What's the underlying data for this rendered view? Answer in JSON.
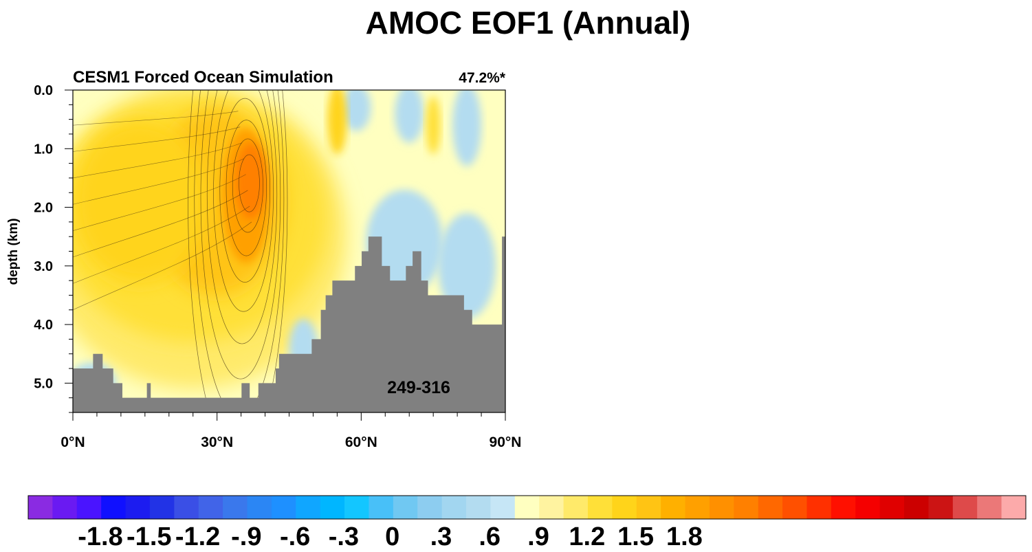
{
  "figure": {
    "title": "AMOC EOF1 (Annual)"
  },
  "chart_data": {
    "type": "heatmap",
    "title": "AMOC EOF1 (Annual)",
    "subtitle_left": "CESM1 Forced Ocean Simulation",
    "subtitle_right": "47.2%*",
    "annotation": "249-316",
    "xlabel": "",
    "ylabel": "depth (km)",
    "xlim": [
      0,
      90
    ],
    "ylim": [
      5.5,
      0.0
    ],
    "x_ticks": [
      0,
      30,
      60,
      90
    ],
    "x_tick_labels": [
      "0°N",
      "30°N",
      "60°N",
      "90°N"
    ],
    "y_ticks": [
      0.0,
      1.0,
      2.0,
      3.0,
      4.0,
      5.0
    ],
    "y_tick_labels": [
      "0.0",
      "1.0",
      "2.0",
      "3.0",
      "4.0",
      "5.0"
    ],
    "y_reversed": true,
    "bathymetry_color": "#808080",
    "bathymetry": [
      [
        0,
        4.75
      ],
      [
        4.2,
        4.75
      ],
      [
        4.2,
        4.5
      ],
      [
        6.2,
        4.5
      ],
      [
        6.2,
        4.75
      ],
      [
        8.4,
        4.75
      ],
      [
        8.4,
        5.0
      ],
      [
        10.3,
        5.0
      ],
      [
        10.3,
        5.25
      ],
      [
        15.4,
        5.25
      ],
      [
        15.4,
        5.0
      ],
      [
        16.2,
        5.0
      ],
      [
        16.2,
        5.25
      ],
      [
        35.1,
        5.25
      ],
      [
        35.1,
        5.0
      ],
      [
        36.8,
        5.0
      ],
      [
        36.8,
        5.25
      ],
      [
        38.6,
        5.25
      ],
      [
        38.6,
        5.0
      ],
      [
        42.2,
        5.0
      ],
      [
        42.2,
        4.75
      ],
      [
        42.9,
        4.75
      ],
      [
        42.9,
        4.5
      ],
      [
        49.7,
        4.5
      ],
      [
        49.7,
        4.25
      ],
      [
        51.6,
        4.25
      ],
      [
        51.6,
        3.75
      ],
      [
        52.6,
        3.75
      ],
      [
        52.6,
        3.5
      ],
      [
        54.0,
        3.5
      ],
      [
        54.0,
        3.25
      ],
      [
        58.7,
        3.25
      ],
      [
        58.7,
        3.0
      ],
      [
        60.1,
        3.0
      ],
      [
        60.1,
        2.75
      ],
      [
        61.5,
        2.75
      ],
      [
        61.5,
        2.5
      ],
      [
        64.3,
        2.5
      ],
      [
        64.3,
        3.0
      ],
      [
        66.0,
        3.0
      ],
      [
        66.0,
        3.25
      ],
      [
        69.3,
        3.25
      ],
      [
        69.3,
        3.0
      ],
      [
        70.7,
        3.0
      ],
      [
        70.7,
        2.75
      ],
      [
        72.5,
        2.75
      ],
      [
        72.5,
        3.25
      ],
      [
        73.9,
        3.25
      ],
      [
        73.9,
        3.5
      ],
      [
        81.4,
        3.5
      ],
      [
        81.4,
        3.75
      ],
      [
        83.1,
        3.75
      ],
      [
        83.1,
        4.0
      ],
      [
        89.3,
        4.0
      ],
      [
        89.3,
        2.5
      ],
      [
        90,
        2.5
      ]
    ],
    "colorbar": {
      "colors": [
        "#8A2BE2",
        "#6A1AF2",
        "#4A14FF",
        "#1010FF",
        "#1C1CF0",
        "#2233E6",
        "#3A4FE6",
        "#4164E8",
        "#3A78EC",
        "#2B86F4",
        "#1E90FF",
        "#10A6FF",
        "#00B6FF",
        "#13C6FF",
        "#48C0F8",
        "#70C8F2",
        "#8DCDF0",
        "#A2D6F0",
        "#B3DCF0",
        "#C6E6F6",
        "#FFFFC0",
        "#FFF3A0",
        "#FFEA6A",
        "#FFE038",
        "#FFD41A",
        "#FFC414",
        "#FFB000",
        "#FFA000",
        "#FF9000",
        "#FF8000",
        "#FF6800",
        "#FF5000",
        "#FF3000",
        "#FF1000",
        "#F50000",
        "#E00000",
        "#CC0000",
        "#CC1414",
        "#DE4A4A",
        "#EB7878",
        "#FCAAAA"
      ],
      "tick_labels": [
        "-1.8",
        "-1.5",
        "-1.2",
        "-.9",
        "-.6",
        "-.3",
        "0",
        ".3",
        ".6",
        ".9",
        "1.2",
        "1.5",
        "1.8"
      ]
    },
    "field_blobs": [
      {
        "cx": 37,
        "cy": 1.55,
        "rx": 3.2,
        "ry": 0.65,
        "value": 1.45
      },
      {
        "cx": 36,
        "cy": 1.8,
        "rx": 5.0,
        "ry": 1.15,
        "value": 1.05
      },
      {
        "cx": 30,
        "cy": 1.9,
        "rx": 14,
        "ry": 1.6,
        "value": 0.8
      },
      {
        "cx": 14,
        "cy": 1.9,
        "rx": 14,
        "ry": 1.4,
        "value": 0.72
      },
      {
        "cx": 25,
        "cy": 2.2,
        "rx": 28,
        "ry": 2.1,
        "value": 0.5
      },
      {
        "cx": 25,
        "cy": 2.5,
        "rx": 32,
        "ry": 2.6,
        "value": 0.3
      },
      {
        "cx": 55,
        "cy": 0.5,
        "rx": 2.0,
        "ry": 0.6,
        "value": 0.6
      },
      {
        "cx": 75,
        "cy": 0.6,
        "rx": 1.5,
        "ry": 0.5,
        "value": 0.55
      },
      {
        "cx": 59,
        "cy": 0.3,
        "rx": 3.0,
        "ry": 0.4,
        "value": -0.25
      },
      {
        "cx": 70,
        "cy": 0.4,
        "rx": 3.0,
        "ry": 0.5,
        "value": -0.25
      },
      {
        "cx": 82,
        "cy": 0.6,
        "rx": 3.0,
        "ry": 0.7,
        "value": -0.3
      },
      {
        "cx": 69,
        "cy": 2.6,
        "rx": 8.0,
        "ry": 0.9,
        "value": -0.2
      },
      {
        "cx": 82,
        "cy": 3.0,
        "rx": 6.0,
        "ry": 0.9,
        "value": -0.25
      },
      {
        "cx": 4,
        "cy": 5.0,
        "rx": 5.0,
        "ry": 0.35,
        "value": -0.2
      },
      {
        "cx": 48,
        "cy": 4.4,
        "rx": 3.0,
        "ry": 0.5,
        "value": -0.2
      }
    ]
  }
}
